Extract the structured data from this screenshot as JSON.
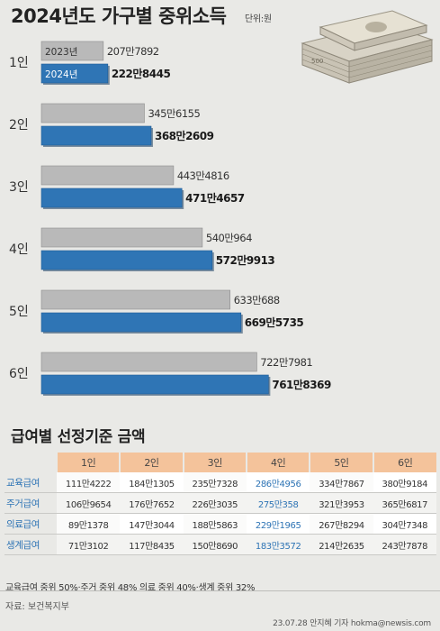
{
  "title": "2024년도 가구별 중위소득",
  "unit": "단위:원",
  "chart_data": {
    "type": "bar",
    "orientation": "horizontal",
    "title": "2024년도 가구별 중위소득",
    "unit": "단위:원",
    "categories": [
      "1인",
      "2인",
      "3인",
      "4인",
      "5인",
      "6인"
    ],
    "series": [
      {
        "name": "2023년",
        "color": "#b9b9b9",
        "values": [
          2077892,
          3456155,
          4434816,
          5400964,
          6330688,
          7227981
        ],
        "labels": [
          "207만7892",
          "345만6155",
          "443만4816",
          "540만964",
          "633만688",
          "722만7981"
        ]
      },
      {
        "name": "2024년",
        "color": "#2f75b5",
        "values": [
          2228445,
          3682609,
          4714657,
          5729913,
          6695735,
          7618369
        ],
        "labels": [
          "222만8445",
          "368만2609",
          "471만4657",
          "572만9913",
          "669만5735",
          "761만8369"
        ]
      }
    ]
  },
  "illustration": {
    "icon": "money-stack-icon",
    "note": "500"
  },
  "table": {
    "title": "급여별 선정기준 금액",
    "columns": [
      "1인",
      "2인",
      "3인",
      "4인",
      "5인",
      "6인"
    ],
    "rows": [
      {
        "label": "교육급여",
        "cells": [
          "111만4222",
          "184만1305",
          "235만7328",
          "286만4956",
          "334만7867",
          "380만9184"
        ]
      },
      {
        "label": "주거급여",
        "cells": [
          "106만9654",
          "176만7652",
          "226만3035",
          "275만358",
          "321만3953",
          "365만6817"
        ]
      },
      {
        "label": "의료급여",
        "cells": [
          "89만1378",
          "147만3044",
          "188만5863",
          "229만1965",
          "267만8294",
          "304만7348"
        ]
      },
      {
        "label": "생계급여",
        "cells": [
          "71만3102",
          "117만8435",
          "150만8690",
          "183만3572",
          "214만2635",
          "243만7878"
        ]
      }
    ]
  },
  "note": "교육급여 중위 50%·주거 중위 48% 의료 중위 40%·생계 중위 32%",
  "source": "자료: 보건복지부",
  "credit": "23.07.28 안지혜 기자 hokma@newsis.com"
}
